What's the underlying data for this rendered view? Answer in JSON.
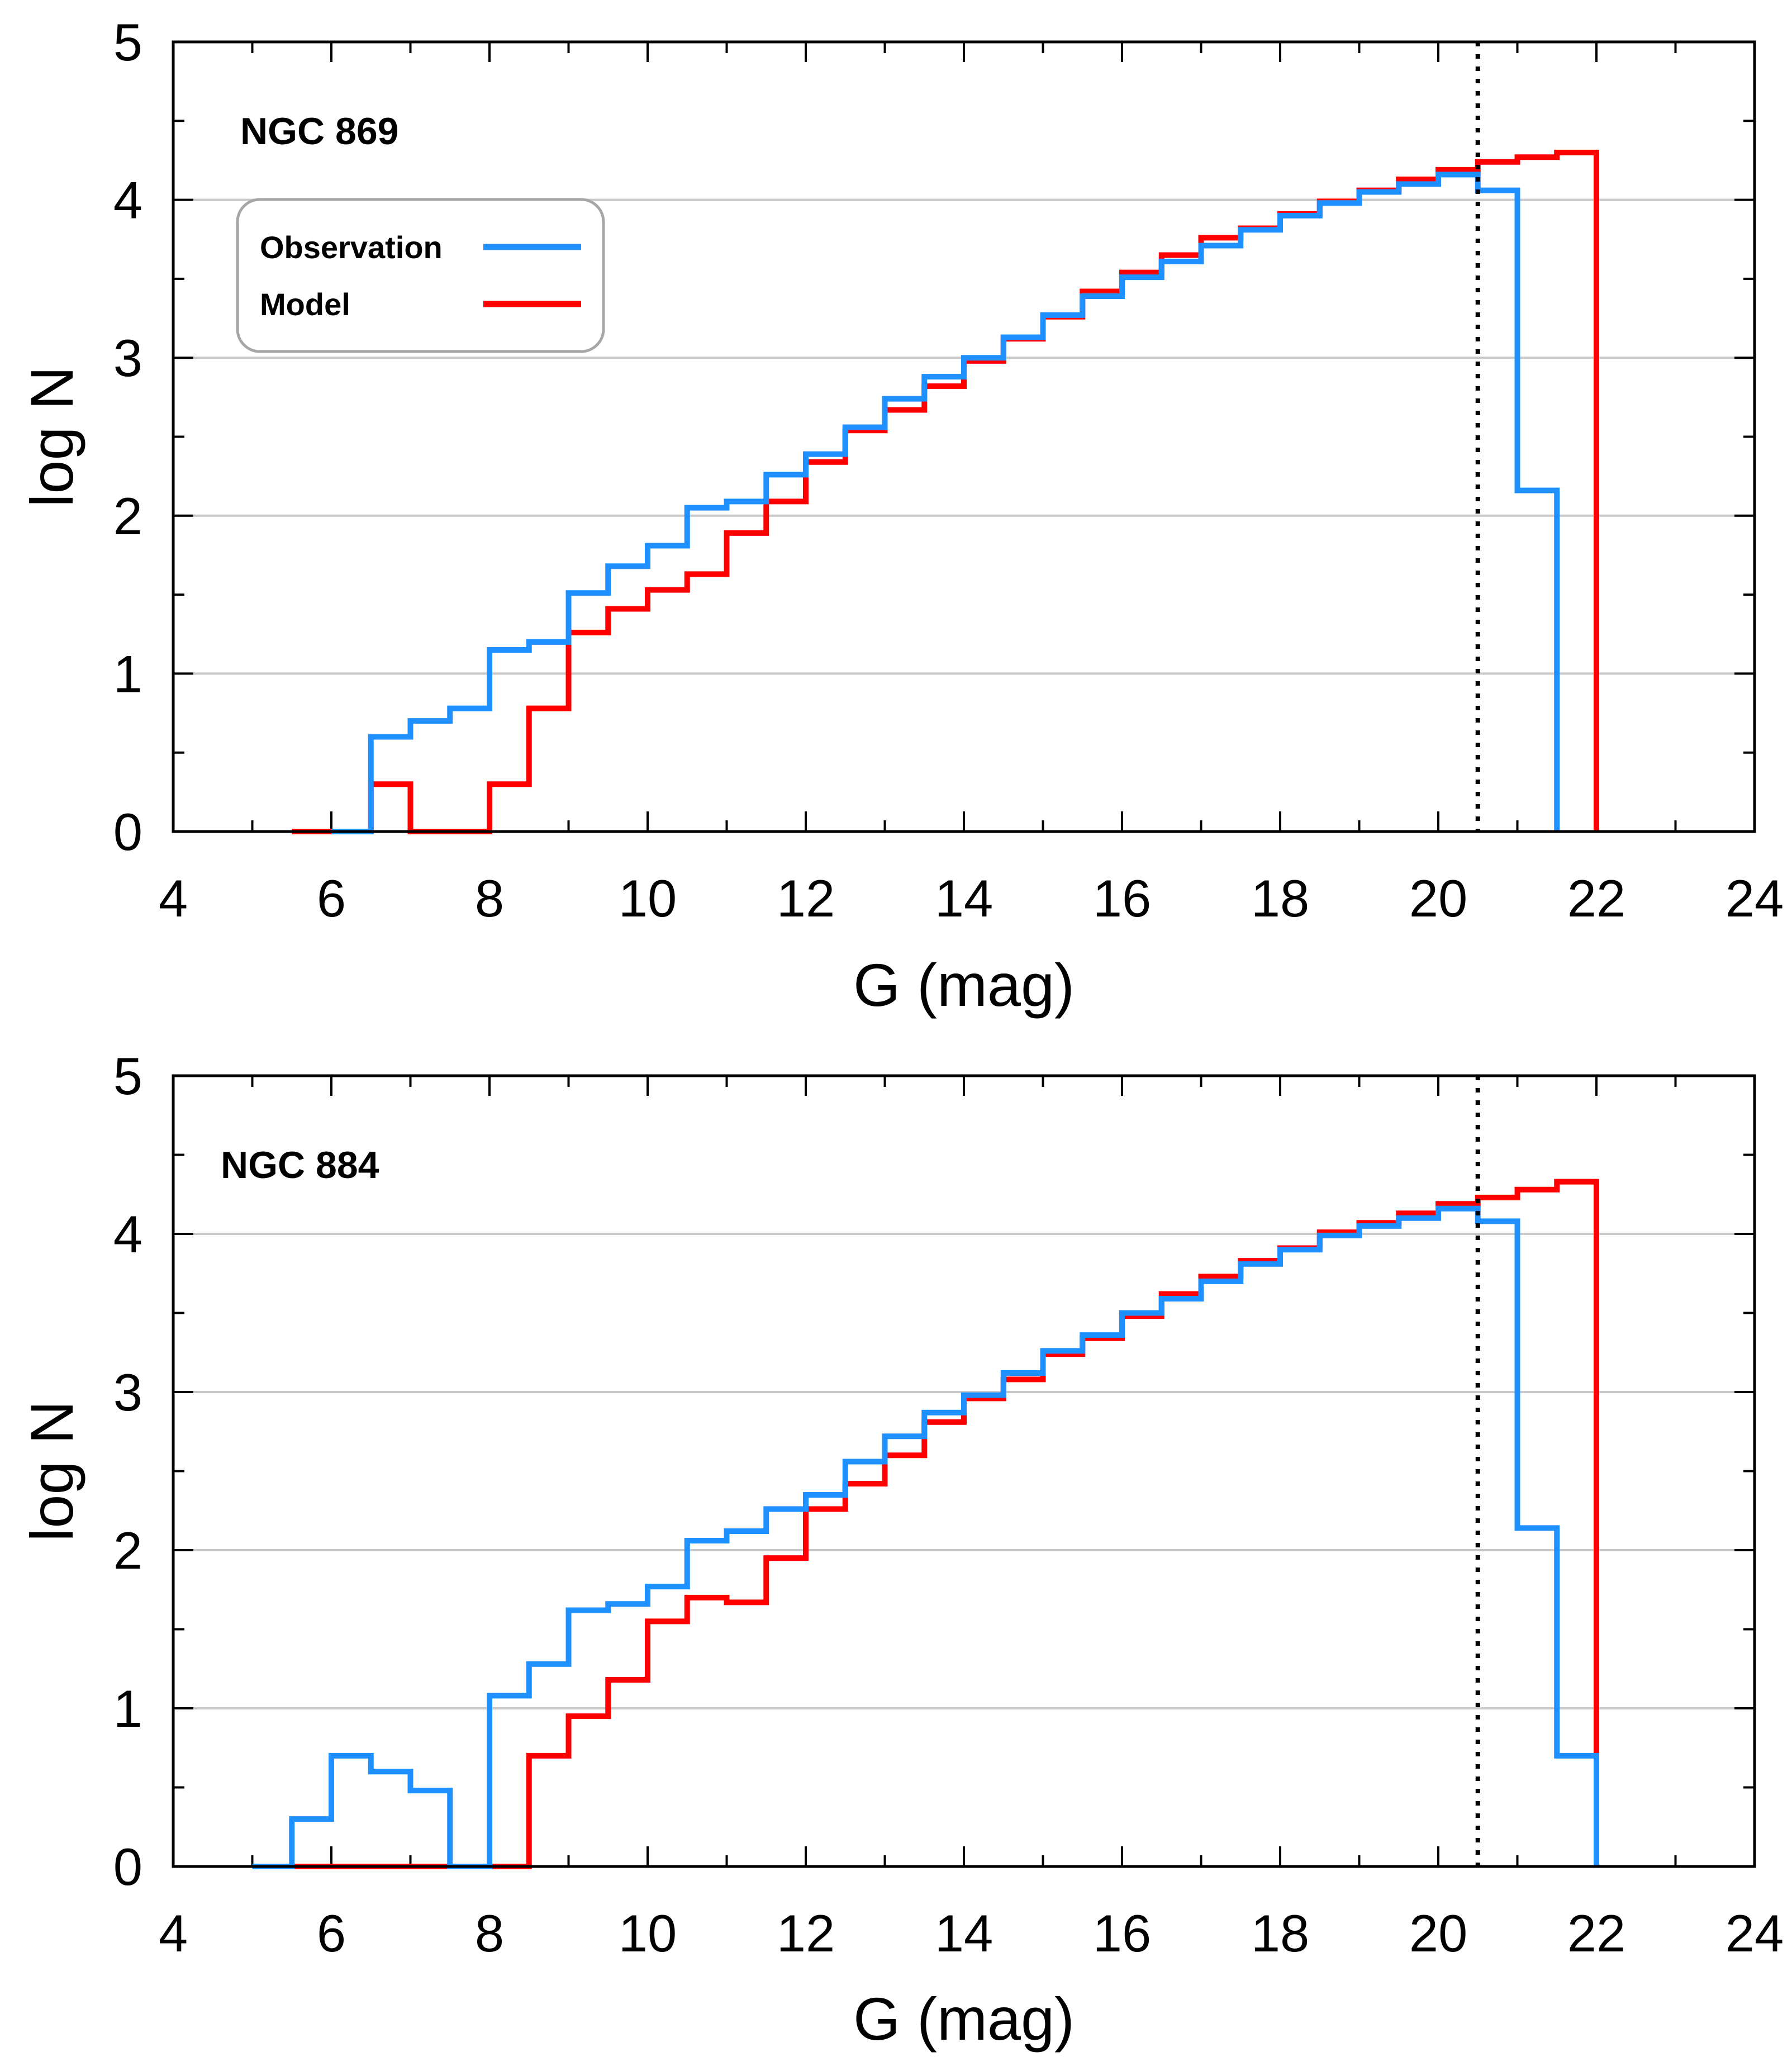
{
  "chart_data": [
    {
      "type": "step",
      "panel_label": "NGC 869",
      "xlabel": "G (mag)",
      "ylabel": "log N",
      "xlim": [
        4,
        24
      ],
      "ylim": [
        0,
        5
      ],
      "x_ticks": [
        "4",
        "6",
        "8",
        "10",
        "12",
        "14",
        "16",
        "18",
        "20",
        "22",
        "24"
      ],
      "y_ticks": [
        "0",
        "1",
        "2",
        "3",
        "4",
        "5"
      ],
      "grid": "horizontal",
      "limit_line": {
        "x": 20.5,
        "style": "dotted"
      },
      "legend": {
        "placement": "top-left",
        "entries": [
          {
            "label": "Observation",
            "color": "#1e90ff"
          },
          {
            "label": "Model",
            "color": "#ff0000"
          }
        ]
      },
      "series": [
        {
          "name": "Model",
          "color": "#ff0000",
          "bins": [
            [
              5.5,
              6.0,
              0.0
            ],
            [
              6.0,
              6.5,
              0.0
            ],
            [
              6.5,
              7.0,
              0.3
            ],
            [
              7.0,
              7.5,
              0.0
            ],
            [
              7.5,
              8.0,
              0.0
            ],
            [
              8.0,
              8.5,
              0.3
            ],
            [
              8.5,
              9.0,
              0.78
            ],
            [
              9.0,
              9.5,
              1.26
            ],
            [
              9.5,
              10.0,
              1.41
            ],
            [
              10.0,
              10.5,
              1.53
            ],
            [
              10.5,
              11.0,
              1.63
            ],
            [
              11.0,
              11.5,
              1.89
            ],
            [
              11.5,
              12.0,
              2.09
            ],
            [
              12.0,
              12.5,
              2.34
            ],
            [
              12.5,
              13.0,
              2.54
            ],
            [
              13.0,
              13.5,
              2.67
            ],
            [
              13.5,
              14.0,
              2.82
            ],
            [
              14.0,
              14.5,
              2.98
            ],
            [
              14.5,
              15.0,
              3.12
            ],
            [
              15.0,
              15.5,
              3.26
            ],
            [
              15.5,
              16.0,
              3.42
            ],
            [
              16.0,
              16.5,
              3.54
            ],
            [
              16.5,
              17.0,
              3.65
            ],
            [
              17.0,
              17.5,
              3.76
            ],
            [
              17.5,
              18.0,
              3.82
            ],
            [
              18.0,
              18.5,
              3.91
            ],
            [
              18.5,
              19.0,
              3.99
            ],
            [
              19.0,
              19.5,
              4.06
            ],
            [
              19.5,
              20.0,
              4.13
            ],
            [
              20.0,
              20.5,
              4.19
            ],
            [
              20.5,
              21.0,
              4.24
            ],
            [
              21.0,
              21.5,
              4.27
            ],
            [
              21.5,
              22.0,
              4.3
            ]
          ]
        },
        {
          "name": "Observation",
          "color": "#1e90ff",
          "bins": [
            [
              6.0,
              6.5,
              0.0
            ],
            [
              6.5,
              7.0,
              0.6
            ],
            [
              7.0,
              7.5,
              0.7
            ],
            [
              7.5,
              8.0,
              0.78
            ],
            [
              8.0,
              8.5,
              1.15
            ],
            [
              8.5,
              9.0,
              1.2
            ],
            [
              9.0,
              9.5,
              1.51
            ],
            [
              9.5,
              10.0,
              1.68
            ],
            [
              10.0,
              10.5,
              1.81
            ],
            [
              10.5,
              11.0,
              2.05
            ],
            [
              11.0,
              11.5,
              2.09
            ],
            [
              11.5,
              12.0,
              2.26
            ],
            [
              12.0,
              12.5,
              2.39
            ],
            [
              12.5,
              13.0,
              2.56
            ],
            [
              13.0,
              13.5,
              2.74
            ],
            [
              13.5,
              14.0,
              2.88
            ],
            [
              14.0,
              14.5,
              3.0
            ],
            [
              14.5,
              15.0,
              3.13
            ],
            [
              15.0,
              15.5,
              3.27
            ],
            [
              15.5,
              16.0,
              3.39
            ],
            [
              16.0,
              16.5,
              3.51
            ],
            [
              16.5,
              17.0,
              3.61
            ],
            [
              17.0,
              17.5,
              3.71
            ],
            [
              17.5,
              18.0,
              3.81
            ],
            [
              18.0,
              18.5,
              3.9
            ],
            [
              18.5,
              19.0,
              3.98
            ],
            [
              19.0,
              19.5,
              4.05
            ],
            [
              19.5,
              20.0,
              4.1
            ],
            [
              20.0,
              20.5,
              4.16
            ],
            [
              20.5,
              21.0,
              4.06
            ],
            [
              21.0,
              21.5,
              2.16
            ],
            [
              21.5,
              21.5,
              0.0
            ]
          ]
        }
      ]
    },
    {
      "type": "step",
      "panel_label": "NGC 884",
      "xlabel": "G (mag)",
      "ylabel": "log N",
      "xlim": [
        4,
        24
      ],
      "ylim": [
        0,
        5
      ],
      "x_ticks": [
        "4",
        "6",
        "8",
        "10",
        "12",
        "14",
        "16",
        "18",
        "20",
        "22",
        "24"
      ],
      "y_ticks": [
        "0",
        "1",
        "2",
        "3",
        "4",
        "5"
      ],
      "grid": "horizontal",
      "limit_line": {
        "x": 20.5,
        "style": "dotted"
      },
      "series": [
        {
          "name": "Model",
          "color": "#ff0000",
          "bins": [
            [
              5.5,
              8.5,
              0.0
            ],
            [
              8.5,
              9.0,
              0.7
            ],
            [
              9.0,
              9.5,
              0.95
            ],
            [
              9.5,
              10.0,
              1.18
            ],
            [
              10.0,
              10.5,
              1.55
            ],
            [
              10.5,
              11.0,
              1.7
            ],
            [
              11.0,
              11.5,
              1.67
            ],
            [
              11.5,
              12.0,
              1.95
            ],
            [
              12.0,
              12.5,
              2.26
            ],
            [
              12.5,
              13.0,
              2.42
            ],
            [
              13.0,
              13.5,
              2.6
            ],
            [
              13.5,
              14.0,
              2.81
            ],
            [
              14.0,
              14.5,
              2.96
            ],
            [
              14.5,
              15.0,
              3.08
            ],
            [
              15.0,
              15.5,
              3.24
            ],
            [
              15.5,
              16.0,
              3.34
            ],
            [
              16.0,
              16.5,
              3.48
            ],
            [
              16.5,
              17.0,
              3.62
            ],
            [
              17.0,
              17.5,
              3.73
            ],
            [
              17.5,
              18.0,
              3.83
            ],
            [
              18.0,
              18.5,
              3.91
            ],
            [
              18.5,
              19.0,
              4.01
            ],
            [
              19.0,
              19.5,
              4.07
            ],
            [
              19.5,
              20.0,
              4.13
            ],
            [
              20.0,
              20.5,
              4.19
            ],
            [
              20.5,
              21.0,
              4.23
            ],
            [
              21.0,
              21.5,
              4.28
            ],
            [
              21.5,
              22.0,
              4.33
            ]
          ]
        },
        {
          "name": "Observation",
          "color": "#1e90ff",
          "bins": [
            [
              5.0,
              5.5,
              0.0
            ],
            [
              5.5,
              6.0,
              0.3
            ],
            [
              6.0,
              6.5,
              0.7
            ],
            [
              6.5,
              7.0,
              0.6
            ],
            [
              7.0,
              7.5,
              0.48
            ],
            [
              7.5,
              8.0,
              0.0
            ],
            [
              8.0,
              8.5,
              1.08
            ],
            [
              8.5,
              9.0,
              1.28
            ],
            [
              9.0,
              9.5,
              1.62
            ],
            [
              9.5,
              10.0,
              1.66
            ],
            [
              10.0,
              10.5,
              1.77
            ],
            [
              10.5,
              11.0,
              2.06
            ],
            [
              11.0,
              11.5,
              2.12
            ],
            [
              11.5,
              12.0,
              2.26
            ],
            [
              12.0,
              12.5,
              2.35
            ],
            [
              12.5,
              13.0,
              2.56
            ],
            [
              13.0,
              13.5,
              2.72
            ],
            [
              13.5,
              14.0,
              2.87
            ],
            [
              14.0,
              14.5,
              2.98
            ],
            [
              14.5,
              15.0,
              3.12
            ],
            [
              15.0,
              15.5,
              3.26
            ],
            [
              15.5,
              16.0,
              3.36
            ],
            [
              16.0,
              16.5,
              3.5
            ],
            [
              16.5,
              17.0,
              3.59
            ],
            [
              17.0,
              17.5,
              3.7
            ],
            [
              17.5,
              18.0,
              3.81
            ],
            [
              18.0,
              18.5,
              3.9
            ],
            [
              18.5,
              19.0,
              3.99
            ],
            [
              19.0,
              19.5,
              4.05
            ],
            [
              19.5,
              20.0,
              4.1
            ],
            [
              20.0,
              20.5,
              4.16
            ],
            [
              20.5,
              21.0,
              4.08
            ],
            [
              21.0,
              21.5,
              2.14
            ],
            [
              21.5,
              22.0,
              0.7
            ],
            [
              22.0,
              22.0,
              0.0
            ]
          ]
        }
      ]
    }
  ]
}
